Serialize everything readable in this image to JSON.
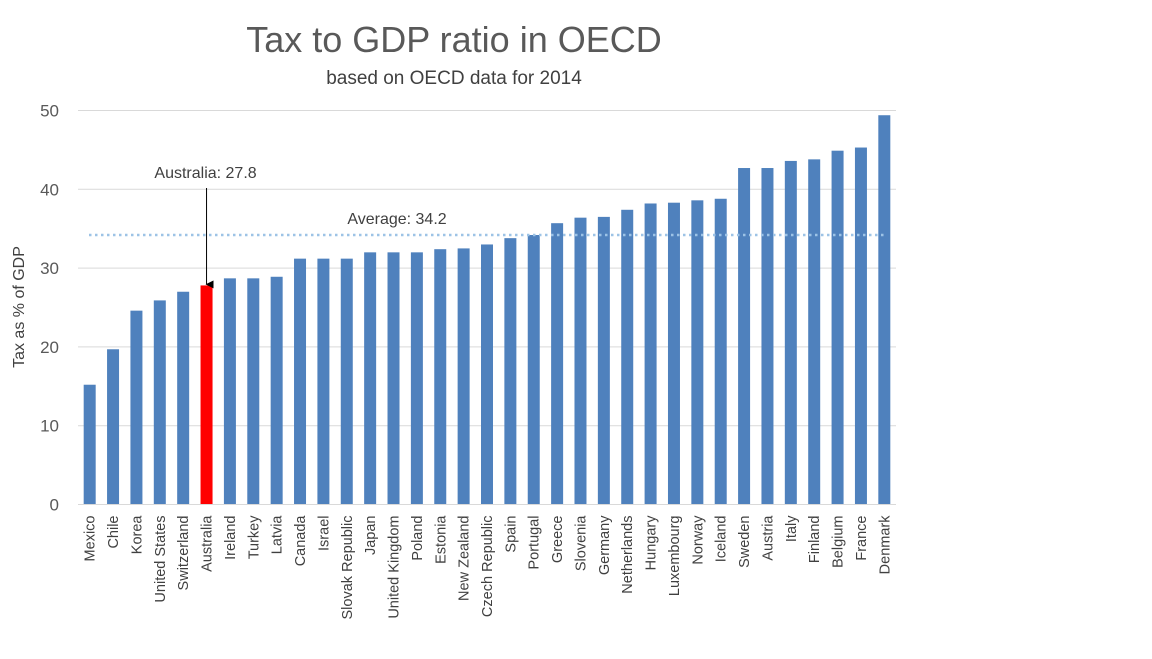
{
  "chart_data": {
    "type": "bar",
    "title": "Tax to GDP ratio in OECD",
    "subtitle": "based on OECD data for 2014",
    "xlabel": "",
    "ylabel": "Tax as % of GDP",
    "ylim": [
      0,
      50
    ],
    "yticks": [
      0,
      10,
      20,
      30,
      40,
      50
    ],
    "yticklabels": [
      "0",
      "10",
      "20",
      "30",
      "40",
      "50"
    ],
    "grid": true,
    "legend": "none",
    "categories": [
      "Mexico",
      "Chile",
      "Korea",
      "United States",
      "Switzerland",
      "Australia",
      "Ireland",
      "Turkey",
      "Latvia",
      "Canada",
      "Israel",
      "Slovak Republic",
      "Japan",
      "United Kingdom",
      "Poland",
      "Estonia",
      "New Zealand",
      "Czech Republic",
      "Spain",
      "Portugal",
      "Greece",
      "Slovenia",
      "Germany",
      "Netherlands",
      "Hungary",
      "Luxembourg",
      "Norway",
      "Iceland",
      "Sweden",
      "Austria",
      "Italy",
      "Finland",
      "Belgium",
      "France",
      "Denmark"
    ],
    "values": [
      15.2,
      19.7,
      24.6,
      25.9,
      27.0,
      27.8,
      28.7,
      28.7,
      28.9,
      31.2,
      31.2,
      31.2,
      32.0,
      32.0,
      32.0,
      32.4,
      32.5,
      33.0,
      33.8,
      34.2,
      35.7,
      36.4,
      36.5,
      37.4,
      38.2,
      38.3,
      38.6,
      38.8,
      42.7,
      42.7,
      43.6,
      43.8,
      44.9,
      45.3,
      49.4
    ],
    "bar_color": "#4f81bd",
    "highlight": {
      "category": "Australia",
      "color": "#ff0000"
    },
    "annotations": [
      {
        "text": "Australia: 27.8",
        "target": "Australia",
        "value": 27.8,
        "arrow": true
      },
      {
        "text": "Average: 34.2",
        "reference_line": 34.2,
        "line_style": "dotted",
        "line_color": "#9dc3e6"
      }
    ]
  }
}
